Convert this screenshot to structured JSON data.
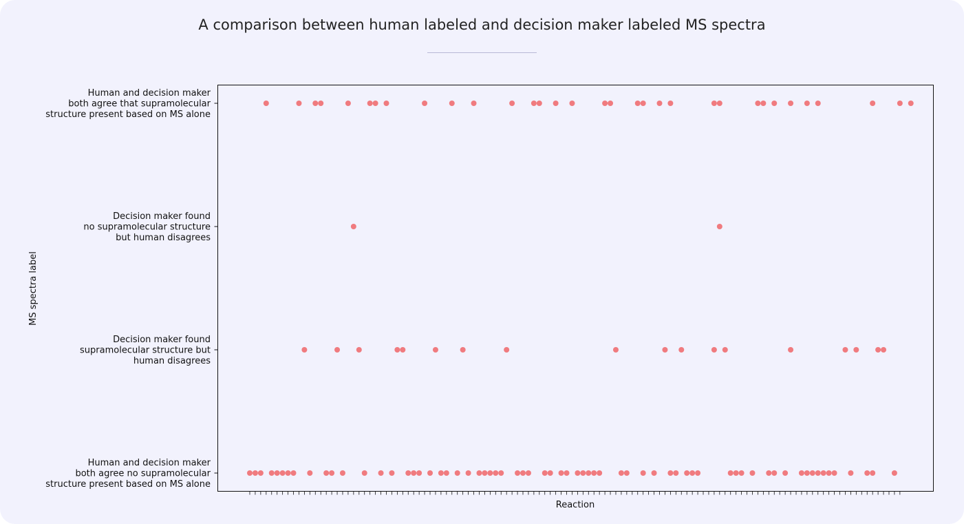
{
  "chart_data": {
    "type": "scatter",
    "title": "A comparison between human labeled and decision maker labeled MS spectra",
    "xlabel": "Reaction",
    "ylabel": "MS spectra label",
    "categories": [
      "Human and decision maker both agree that supramolecular structure present based on MS alone",
      "Decision maker found no supramolecular structure but human disagrees",
      "Decision maker found supramolecular structure but human disagrees",
      "Human and decision maker both agree no supramolecular structure present based on MS alone"
    ],
    "category_lines": [
      [
        "Human and decision maker",
        "both agree that supramolecular",
        "structure present based on MS alone"
      ],
      [
        "Decision maker found",
        "no supramolecular structure",
        "but human disagrees"
      ],
      [
        "Decision maker found",
        "supramolecular structure but",
        "human disagrees"
      ],
      [
        "Human and decision maker",
        "both agree no supramolecular",
        "structure present based on MS alone"
      ]
    ],
    "xlim": [
      -1,
      119
    ],
    "reaction_count": 120,
    "x_tick_labels_visible": false,
    "grid": false,
    "marker_color": "#f07b7f",
    "points": [
      [
        3,
        0
      ],
      [
        9,
        0
      ],
      [
        12,
        0
      ],
      [
        13,
        0
      ],
      [
        18,
        0
      ],
      [
        22,
        0
      ],
      [
        23,
        0
      ],
      [
        25,
        0
      ],
      [
        32,
        0
      ],
      [
        37,
        0
      ],
      [
        41,
        0
      ],
      [
        48,
        0
      ],
      [
        52,
        0
      ],
      [
        53,
        0
      ],
      [
        56,
        0
      ],
      [
        59,
        0
      ],
      [
        65,
        0
      ],
      [
        66,
        0
      ],
      [
        71,
        0
      ],
      [
        72,
        0
      ],
      [
        75,
        0
      ],
      [
        77,
        0
      ],
      [
        85,
        0
      ],
      [
        86,
        0
      ],
      [
        93,
        0
      ],
      [
        94,
        0
      ],
      [
        96,
        0
      ],
      [
        99,
        0
      ],
      [
        102,
        0
      ],
      [
        104,
        0
      ],
      [
        114,
        0
      ],
      [
        119,
        0
      ],
      [
        121,
        0
      ],
      [
        19,
        1
      ],
      [
        86,
        1
      ],
      [
        10,
        2
      ],
      [
        16,
        2
      ],
      [
        20,
        2
      ],
      [
        27,
        2
      ],
      [
        28,
        2
      ],
      [
        34,
        2
      ],
      [
        39,
        2
      ],
      [
        47,
        2
      ],
      [
        67,
        2
      ],
      [
        76,
        2
      ],
      [
        79,
        2
      ],
      [
        85,
        2
      ],
      [
        87,
        2
      ],
      [
        99,
        2
      ],
      [
        109,
        2
      ],
      [
        111,
        2
      ],
      [
        115,
        2
      ],
      [
        116,
        2
      ],
      [
        0,
        3
      ],
      [
        1,
        3
      ],
      [
        2,
        3
      ],
      [
        4,
        3
      ],
      [
        5,
        3
      ],
      [
        6,
        3
      ],
      [
        7,
        3
      ],
      [
        8,
        3
      ],
      [
        11,
        3
      ],
      [
        14,
        3
      ],
      [
        15,
        3
      ],
      [
        17,
        3
      ],
      [
        21,
        3
      ],
      [
        24,
        3
      ],
      [
        26,
        3
      ],
      [
        29,
        3
      ],
      [
        30,
        3
      ],
      [
        31,
        3
      ],
      [
        33,
        3
      ],
      [
        35,
        3
      ],
      [
        36,
        3
      ],
      [
        38,
        3
      ],
      [
        40,
        3
      ],
      [
        42,
        3
      ],
      [
        43,
        3
      ],
      [
        44,
        3
      ],
      [
        45,
        3
      ],
      [
        46,
        3
      ],
      [
        49,
        3
      ],
      [
        50,
        3
      ],
      [
        51,
        3
      ],
      [
        54,
        3
      ],
      [
        55,
        3
      ],
      [
        57,
        3
      ],
      [
        58,
        3
      ],
      [
        60,
        3
      ],
      [
        61,
        3
      ],
      [
        62,
        3
      ],
      [
        63,
        3
      ],
      [
        64,
        3
      ],
      [
        68,
        3
      ],
      [
        69,
        3
      ],
      [
        72,
        3
      ],
      [
        74,
        3
      ],
      [
        77,
        3
      ],
      [
        78,
        3
      ],
      [
        80,
        3
      ],
      [
        81,
        3
      ],
      [
        82,
        3
      ],
      [
        88,
        3
      ],
      [
        89,
        3
      ],
      [
        90,
        3
      ],
      [
        92,
        3
      ],
      [
        95,
        3
      ],
      [
        96,
        3
      ],
      [
        98,
        3
      ],
      [
        101,
        3
      ],
      [
        102,
        3
      ],
      [
        103,
        3
      ],
      [
        104,
        3
      ],
      [
        105,
        3
      ],
      [
        106,
        3
      ],
      [
        107,
        3
      ],
      [
        110,
        3
      ],
      [
        113,
        3
      ],
      [
        114,
        3
      ],
      [
        118,
        3
      ]
    ]
  }
}
